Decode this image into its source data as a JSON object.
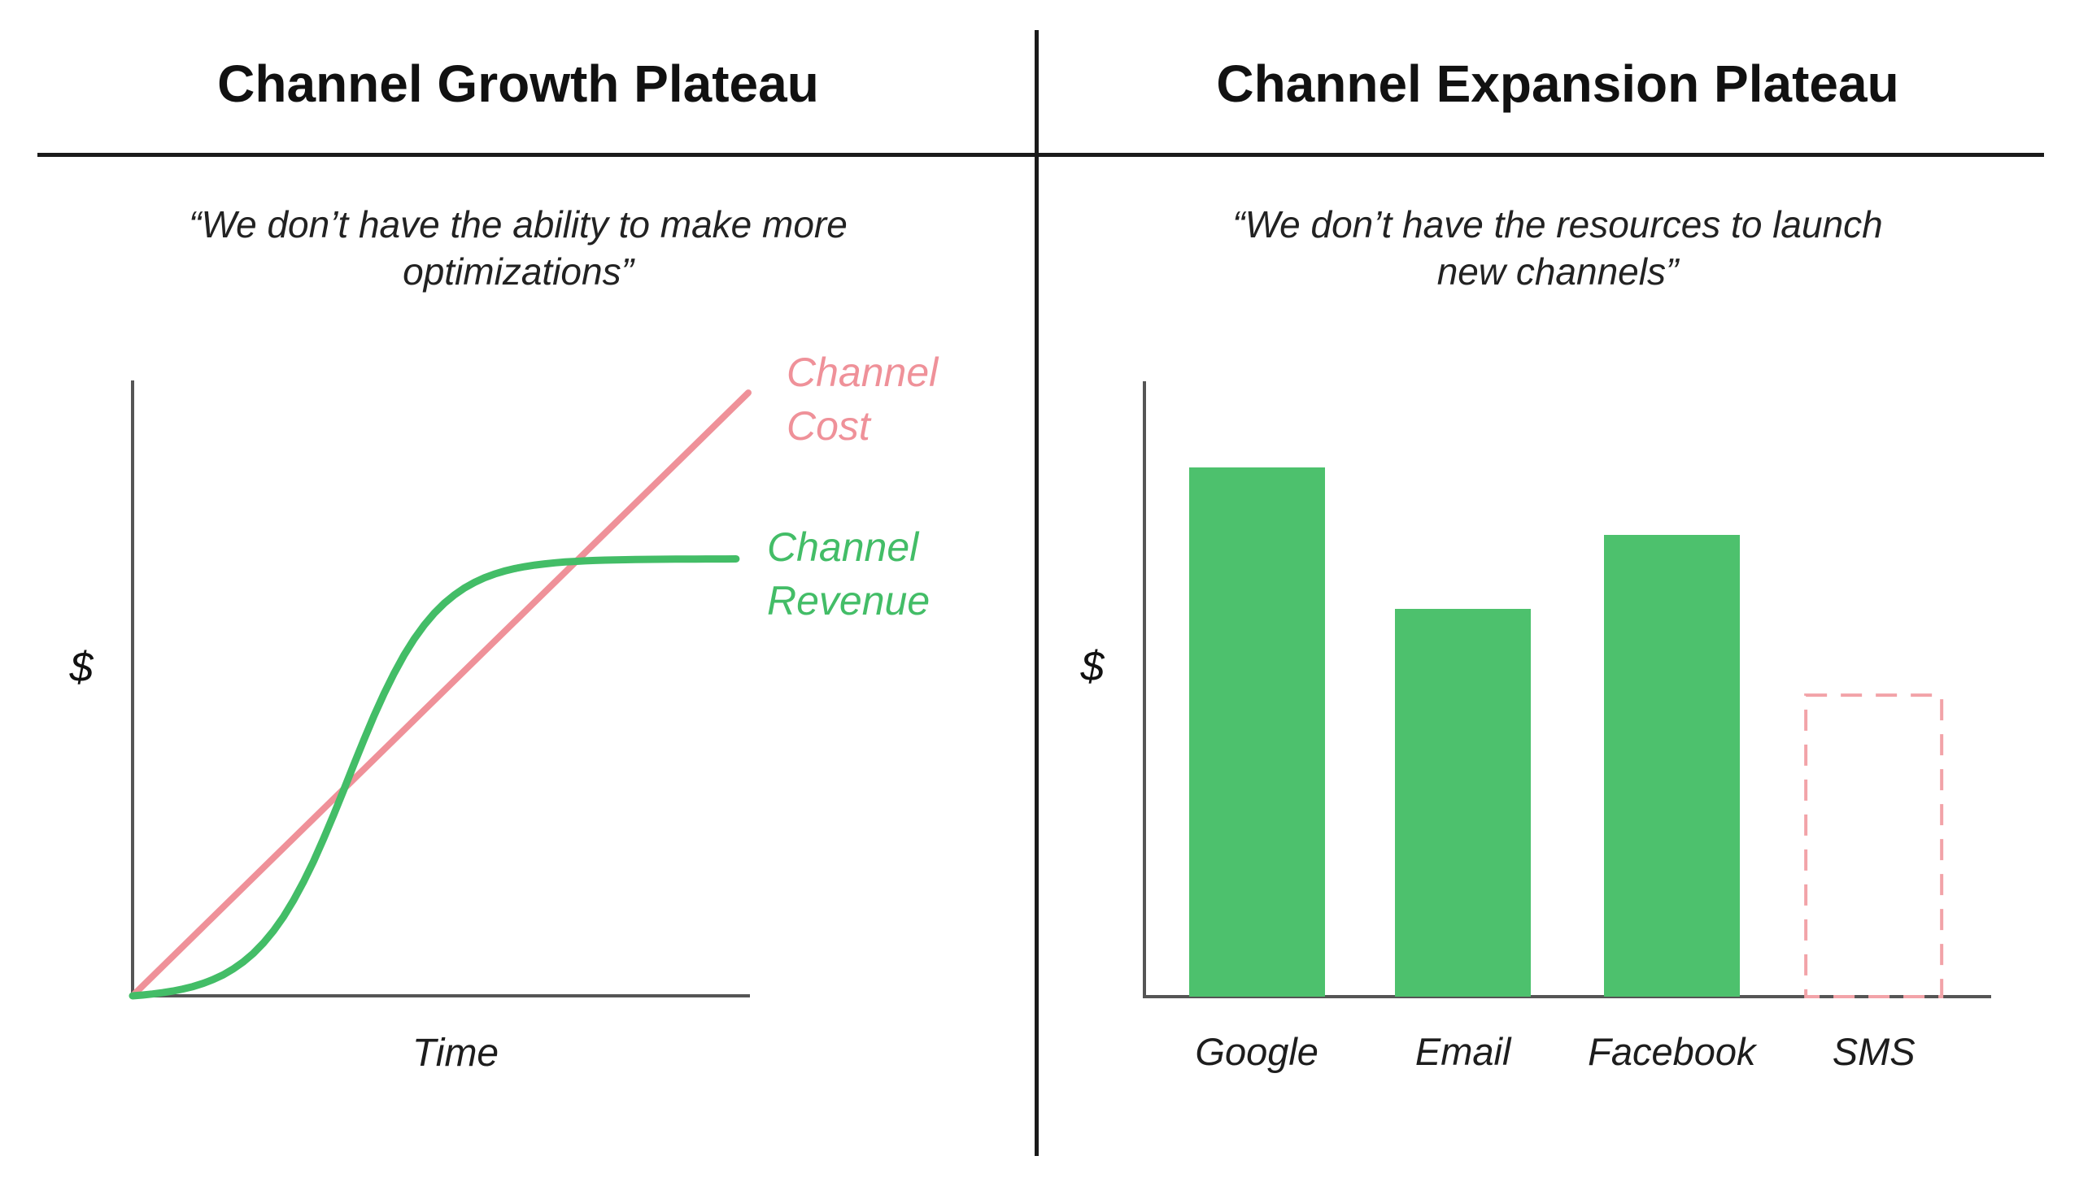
{
  "panels": [
    {
      "title": "Channel Growth Plateau",
      "quote_line1": "“We don’t have the ability to make more",
      "quote_line2": "optimizations”",
      "y_axis_label": "$",
      "x_axis_label": "Time",
      "legend": {
        "cost": "Channel\nCost",
        "revenue": "Channel\nRevenue"
      }
    },
    {
      "title": "Channel Expansion Plateau",
      "quote_line1": "“We don’t have the resources to launch",
      "quote_line2": "new channels”",
      "y_axis_label": "$"
    }
  ],
  "colors": {
    "revenue_green": "#43bd67",
    "bar_green": "#4dc16d",
    "cost_pink": "#ef9199",
    "sms_dashed_pink": "#f2a3a8",
    "axis_gray": "#555555",
    "text_black": "#111111"
  },
  "chart_data": [
    {
      "type": "line",
      "title": "Channel Growth Plateau",
      "xlabel": "Time",
      "ylabel": "$",
      "x_range": [
        0,
        1
      ],
      "y_range": [
        0,
        1
      ],
      "grid": false,
      "legend_position": "right of lines",
      "series": [
        {
          "name": "Channel Cost",
          "color": "#ef9199",
          "shape": "linear",
          "start_frac": [
            0,
            0
          ],
          "end_frac": [
            1.0,
            0.98
          ]
        },
        {
          "name": "Channel Revenue",
          "color": "#43bd67",
          "shape": "sigmoid",
          "plateau_frac": 0.71,
          "midpoint_frac": 0.35,
          "steepness": 14,
          "x_end_frac": 0.98
        }
      ],
      "annotations": "Axes unlabeled numerically; revenue S-curve plateaus at ~71% of axis height while linear cost keeps rising; curves cross near 36% and 72% of the time axis"
    },
    {
      "type": "bar",
      "title": "Channel Expansion Plateau",
      "xlabel": "",
      "ylabel": "$",
      "grid": false,
      "categories": [
        "Google",
        "Email",
        "Facebook",
        "SMS"
      ],
      "values": [
        86,
        63,
        75,
        49
      ],
      "value_scale": "relative bar height, % of plot height (no numeric ticks shown)",
      "bar_styles": [
        "solid",
        "solid",
        "solid",
        "dashed-outline"
      ],
      "solid_color": "#4dc16d",
      "dashed_color": "#f2a3a8",
      "annotations": "SMS bar is an empty dashed pink outline indicating an unlaunched channel"
    }
  ]
}
